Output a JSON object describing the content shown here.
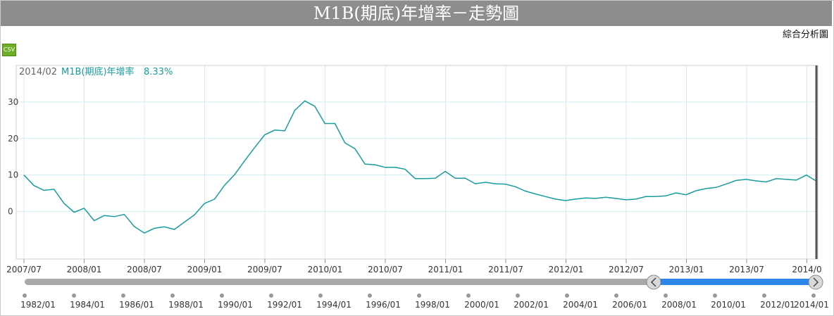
{
  "title": "M1B(期底)年增率－走勢圖",
  "analysis_link": "綜合分析圖",
  "csv_label": "CSV",
  "readout": {
    "date": "2014/02",
    "series": "M1B(期底)年增率",
    "value": "8.33%"
  },
  "colors": {
    "line": "#1a9c9c",
    "grid": "#d2ecf0",
    "selection": "#2b86e8",
    "track": "#a9a9a9",
    "title_bg": "#8d8d8d"
  },
  "chart_data": {
    "type": "line",
    "title": "M1B(期底)年增率－走勢圖",
    "ylim": [
      -13,
      40
    ],
    "yticks": [
      0,
      10,
      20,
      30
    ],
    "grid": true,
    "x_tick_labels": [
      "2007/07",
      "2008/01",
      "2008/07",
      "2009/01",
      "2009/07",
      "2010/01",
      "2010/07",
      "2011/01",
      "2011/07",
      "2012/01",
      "2012/07",
      "2013/01",
      "2013/07",
      "2014/0"
    ],
    "series": [
      {
        "name": "M1B(期底)年增率",
        "x": [
          "2007/07",
          "2007/08",
          "2007/09",
          "2007/10",
          "2007/11",
          "2007/12",
          "2008/01",
          "2008/02",
          "2008/03",
          "2008/04",
          "2008/05",
          "2008/06",
          "2008/07",
          "2008/08",
          "2008/09",
          "2008/10",
          "2008/11",
          "2008/12",
          "2009/01",
          "2009/02",
          "2009/03",
          "2009/04",
          "2009/05",
          "2009/06",
          "2009/07",
          "2009/08",
          "2009/09",
          "2009/10",
          "2009/11",
          "2009/12",
          "2010/01",
          "2010/02",
          "2010/03",
          "2010/04",
          "2010/05",
          "2010/06",
          "2010/07",
          "2010/08",
          "2010/09",
          "2010/10",
          "2010/11",
          "2010/12",
          "2011/01",
          "2011/02",
          "2011/03",
          "2011/04",
          "2011/05",
          "2011/06",
          "2011/07",
          "2011/08",
          "2011/09",
          "2011/10",
          "2011/11",
          "2011/12",
          "2012/01",
          "2012/02",
          "2012/03",
          "2012/04",
          "2012/05",
          "2012/06",
          "2012/07",
          "2012/08",
          "2012/09",
          "2012/10",
          "2012/11",
          "2012/12",
          "2013/01",
          "2013/02",
          "2013/03",
          "2013/04",
          "2013/05",
          "2013/06",
          "2013/07",
          "2013/08",
          "2013/09",
          "2013/10",
          "2013/11",
          "2013/12",
          "2014/01",
          "2014/02"
        ],
        "values": [
          10.0,
          7.1,
          5.8,
          6.1,
          2.2,
          -0.2,
          0.9,
          -2.5,
          -1.1,
          -1.4,
          -0.8,
          -4.1,
          -5.9,
          -4.6,
          -4.2,
          -4.9,
          -2.9,
          -0.9,
          2.2,
          3.4,
          7.2,
          10.1,
          13.9,
          17.5,
          21.0,
          22.3,
          22.1,
          27.7,
          30.3,
          28.8,
          24.1,
          24.1,
          18.8,
          17.2,
          13.0,
          12.8,
          12.1,
          12.1,
          11.6,
          9.0,
          9.0,
          9.1,
          11.0,
          9.1,
          9.1,
          7.6,
          8.0,
          7.6,
          7.5,
          6.8,
          5.6,
          4.8,
          4.1,
          3.4,
          3.0,
          3.4,
          3.7,
          3.6,
          3.9,
          3.6,
          3.2,
          3.4,
          4.1,
          4.1,
          4.3,
          5.1,
          4.6,
          5.7,
          6.3,
          6.6,
          7.5,
          8.5,
          8.8,
          8.4,
          8.1,
          9.0,
          8.8,
          8.6,
          10.0,
          8.33
        ]
      }
    ],
    "navigator": {
      "labels": [
        "1982/01",
        "1984/01",
        "1986/01",
        "1988/01",
        "1990/01",
        "1992/01",
        "1994/01",
        "1996/01",
        "1998/01",
        "2000/01",
        "2002/01",
        "2004/01",
        "2006/01",
        "2008/01",
        "2010/01",
        "2012/01",
        "2014/01"
      ],
      "range_start": "2007/07",
      "range_end": "2014/02"
    }
  }
}
